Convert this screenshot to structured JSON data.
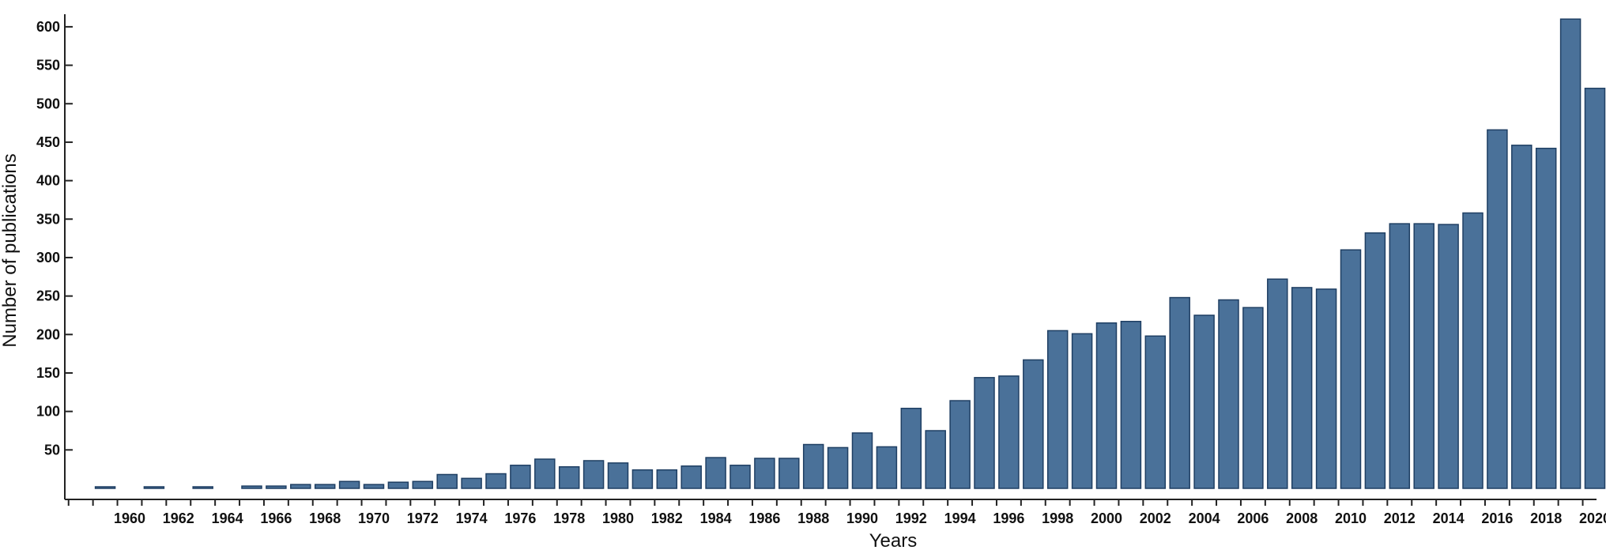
{
  "chart_data": {
    "type": "bar",
    "title": "",
    "xlabel": "Years",
    "ylabel": "Number of publications",
    "ylim": [
      0,
      610
    ],
    "yticks": [
      50,
      100,
      150,
      200,
      250,
      300,
      350,
      400,
      450,
      500,
      550,
      600
    ],
    "xticks": [
      1960,
      1962,
      1964,
      1966,
      1968,
      1970,
      1972,
      1974,
      1976,
      1978,
      1980,
      1982,
      1984,
      1986,
      1988,
      1990,
      1992,
      1994,
      1996,
      1998,
      2000,
      2002,
      2004,
      2006,
      2008,
      2010,
      2012,
      2014,
      2016,
      2018,
      2020
    ],
    "grid": false,
    "bar_color": "#4a7199",
    "categories": [
      1959,
      1961,
      1963,
      1965,
      1966,
      1967,
      1968,
      1969,
      1970,
      1971,
      1972,
      1973,
      1974,
      1975,
      1976,
      1977,
      1978,
      1979,
      1980,
      1981,
      1982,
      1983,
      1984,
      1985,
      1986,
      1987,
      1988,
      1989,
      1990,
      1991,
      1992,
      1993,
      1994,
      1995,
      1996,
      1997,
      1998,
      1999,
      2000,
      2001,
      2002,
      2003,
      2004,
      2005,
      2006,
      2007,
      2008,
      2009,
      2010,
      2011,
      2012,
      2013,
      2014,
      2015,
      2016,
      2017,
      2018,
      2019,
      2020
    ],
    "values": [
      1,
      1,
      1,
      3,
      3,
      5,
      5,
      9,
      5,
      8,
      9,
      18,
      13,
      19,
      30,
      38,
      28,
      36,
      33,
      24,
      24,
      29,
      40,
      30,
      39,
      39,
      57,
      53,
      72,
      54,
      104,
      75,
      114,
      144,
      146,
      167,
      205,
      201,
      215,
      217,
      198,
      248,
      225,
      245,
      235,
      272,
      261,
      259,
      310,
      332,
      344,
      344,
      343,
      358,
      466,
      446,
      442,
      610,
      520
    ]
  }
}
